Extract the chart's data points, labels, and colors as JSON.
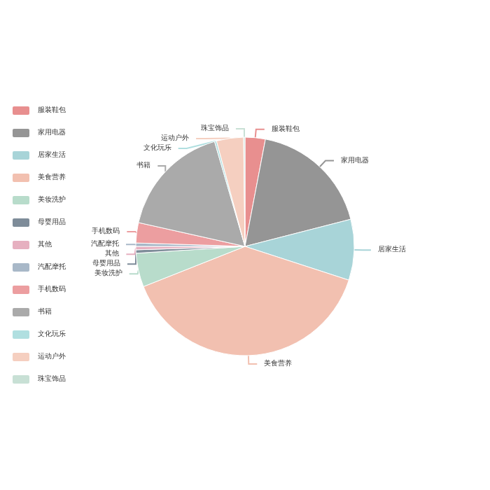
{
  "chart_data": {
    "type": "pie",
    "categories": [
      "服装鞋包",
      "家用电器",
      "居家生活",
      "美食营养",
      "美妆洗护",
      "母婴用品",
      "其他",
      "汽配摩托",
      "手机数码",
      "书籍",
      "文化玩乐",
      "运动户外",
      "珠宝饰品"
    ],
    "values": [
      3,
      18,
      9,
      39,
      5,
      0.5,
      0.5,
      0.5,
      3,
      17,
      0.3,
      4,
      0.2
    ],
    "colors": [
      "#e88f8f",
      "#959595",
      "#a8d4d8",
      "#f2c0b0",
      "#b8dccb",
      "#7e8c99",
      "#e6b0c0",
      "#a8b8c8",
      "#ec9ea0",
      "#aaaaaa",
      "#b0dfe0",
      "#f5cfc0",
      "#c8e0d5"
    ],
    "legend": "left"
  }
}
